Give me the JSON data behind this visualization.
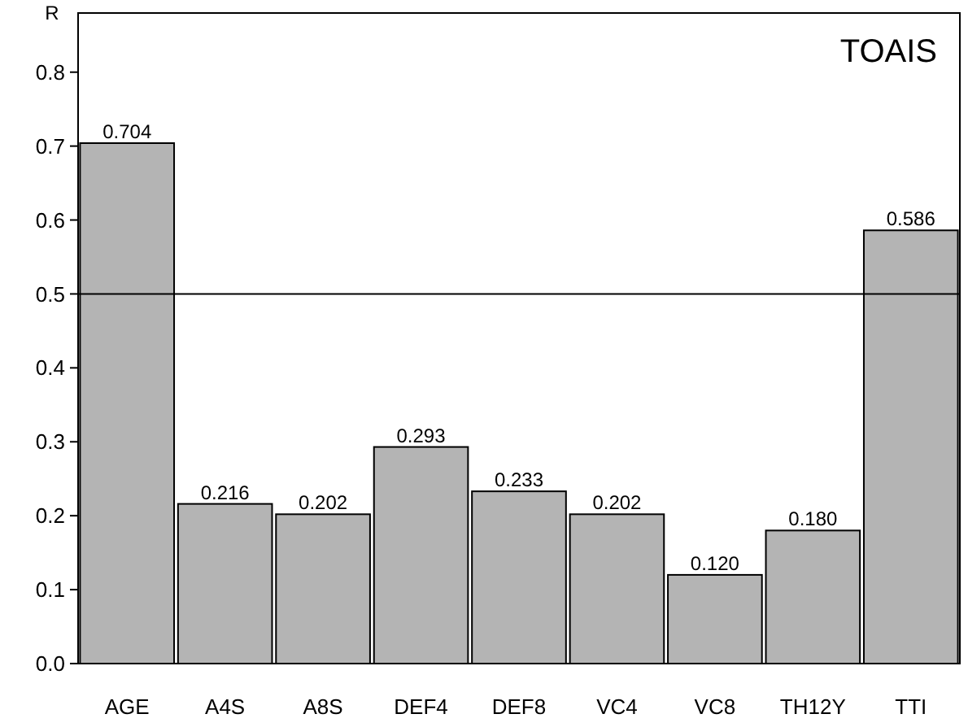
{
  "chart_data": {
    "type": "bar",
    "title": "TOAIS",
    "ylabel": "R",
    "categories": [
      "AGE",
      "A4S",
      "A8S",
      "DEF4",
      "DEF8",
      "VC4",
      "VC8",
      "TH12Y",
      "TTI"
    ],
    "values": [
      0.704,
      0.216,
      0.202,
      0.293,
      0.233,
      0.202,
      0.12,
      0.18,
      0.586
    ],
    "value_labels": [
      "0.704",
      "0.216",
      "0.202",
      "0.293",
      "0.233",
      "0.202",
      "0.120",
      "0.180",
      "0.586"
    ],
    "color": "#b4b4b4",
    "ylim": [
      0,
      0.88
    ],
    "yticks": [
      {
        "value": 0,
        "label": "0.0"
      },
      {
        "value": 0.1,
        "label": "0.1"
      },
      {
        "value": 0.2,
        "label": "0.2"
      },
      {
        "value": 0.3,
        "label": "0.3"
      },
      {
        "value": 0.4,
        "label": "0.4"
      },
      {
        "value": 0.5,
        "label": "0.5"
      },
      {
        "value": 0.6,
        "label": "0.6"
      },
      {
        "value": 0.7,
        "label": "0.7"
      },
      {
        "value": 0.8,
        "label": "0.8"
      }
    ],
    "ref_lines": [
      {
        "axis": "y",
        "value": 0.5,
        "color": "#000000"
      }
    ],
    "grid": false
  }
}
